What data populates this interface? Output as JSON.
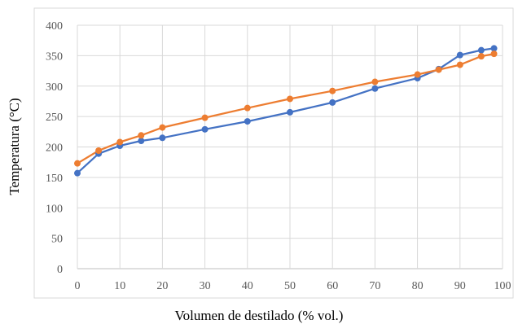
{
  "chart_data": {
    "type": "line",
    "title": "",
    "xlabel": "Volumen de destilado (% vol.)",
    "ylabel": "Temperatura (°C)",
    "xlim": [
      0,
      100
    ],
    "ylim": [
      0,
      400
    ],
    "x_ticks": [
      "0",
      "10",
      "20",
      "30",
      "40",
      "50",
      "60",
      "70",
      "80",
      "90",
      "100"
    ],
    "y_ticks": [
      "0",
      "50",
      "100",
      "150",
      "200",
      "250",
      "300",
      "350",
      "400"
    ],
    "grid": true,
    "legend": "none",
    "series": [
      {
        "color": "#4472c4",
        "x": [
          0,
          5,
          10,
          15,
          20,
          30,
          40,
          50,
          60,
          70,
          80,
          85,
          90,
          95,
          98
        ],
        "y": [
          157,
          189,
          202,
          210,
          215,
          229,
          242,
          257,
          273,
          296,
          313,
          328,
          351,
          359,
          362
        ]
      },
      {
        "color": "#ed7d31",
        "x": [
          0,
          5,
          10,
          15,
          20,
          30,
          40,
          50,
          60,
          70,
          80,
          85,
          90,
          95,
          98
        ],
        "y": [
          173,
          194,
          208,
          219,
          232,
          248,
          264,
          279,
          292,
          307,
          319,
          327,
          335,
          349,
          353
        ]
      }
    ]
  }
}
